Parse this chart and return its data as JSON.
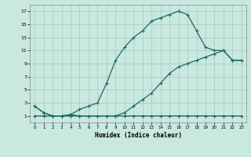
{
  "title": "",
  "xlabel": "Humidex (Indice chaleur)",
  "xlim": [
    -0.5,
    23.5
  ],
  "ylim": [
    0,
    18
  ],
  "xticks": [
    0,
    1,
    2,
    3,
    4,
    5,
    6,
    7,
    8,
    9,
    10,
    11,
    12,
    13,
    14,
    15,
    16,
    17,
    18,
    19,
    20,
    21,
    22,
    23
  ],
  "yticks": [
    1,
    3,
    5,
    7,
    9,
    11,
    13,
    15,
    17
  ],
  "background_color": "#c8e8e0",
  "grid_color": "#a8c8c0",
  "line_color": "#1a6b5a",
  "line1_x": [
    0,
    1,
    2,
    3,
    4,
    5,
    6,
    7,
    8,
    9,
    10,
    11,
    12,
    13,
    14,
    15,
    16,
    17,
    18,
    19,
    20,
    21,
    22,
    23
  ],
  "line1_y": [
    2.5,
    1.5,
    1.0,
    1.0,
    1.2,
    1.0,
    1.0,
    1.0,
    1.0,
    1.0,
    1.0,
    1.0,
    1.0,
    1.0,
    1.0,
    1.0,
    1.0,
    1.0,
    1.0,
    1.0,
    1.0,
    1.0,
    1.0,
    1.0
  ],
  "line2_x": [
    0,
    1,
    2,
    3,
    4,
    5,
    6,
    7,
    8,
    9,
    10,
    11,
    12,
    13,
    14,
    15,
    16,
    17,
    18,
    19,
    20,
    21,
    22,
    23
  ],
  "line2_y": [
    2.5,
    1.5,
    1.0,
    1.0,
    1.2,
    2.0,
    2.5,
    3.0,
    6.0,
    9.5,
    11.5,
    13.0,
    14.0,
    15.5,
    16.0,
    16.5,
    17.0,
    16.5,
    14.0,
    11.5,
    11.0,
    11.0,
    9.5,
    9.5
  ],
  "line3_x": [
    0,
    1,
    2,
    3,
    4,
    5,
    6,
    7,
    8,
    9,
    10,
    11,
    12,
    13,
    14,
    15,
    16,
    17,
    18,
    19,
    20,
    21,
    22,
    23
  ],
  "line3_y": [
    1.0,
    1.0,
    1.0,
    1.0,
    1.0,
    1.0,
    1.0,
    1.0,
    1.0,
    1.0,
    1.5,
    2.5,
    3.5,
    4.5,
    6.0,
    7.5,
    8.5,
    9.0,
    9.5,
    10.0,
    10.5,
    11.0,
    9.5,
    9.5
  ]
}
